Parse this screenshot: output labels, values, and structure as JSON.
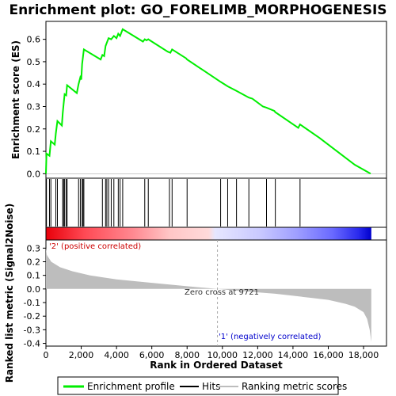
{
  "chart_data": {
    "type": "line",
    "title": "Enrichment plot: GO_FORELIMB_MORPHOGENESIS",
    "top_panel": {
      "ylabel": "Enrichment score (ES)",
      "ylim": [
        -0.02,
        0.68
      ],
      "yticks": [
        0.0,
        0.1,
        0.2,
        0.3,
        0.4,
        0.5,
        0.6
      ],
      "series": [
        {
          "name": "Enrichment profile",
          "color": "#00ee00",
          "points": [
            [
              0,
              0.0
            ],
            [
              30,
              0.09
            ],
            [
              200,
              0.08
            ],
            [
              280,
              0.145
            ],
            [
              500,
              0.13
            ],
            [
              560,
              0.18
            ],
            [
              650,
              0.235
            ],
            [
              900,
              0.215
            ],
            [
              950,
              0.27
            ],
            [
              1000,
              0.31
            ],
            [
              1060,
              0.355
            ],
            [
              1150,
              0.35
            ],
            [
              1200,
              0.395
            ],
            [
              1750,
              0.36
            ],
            [
              1850,
              0.4
            ],
            [
              1950,
              0.43
            ],
            [
              2000,
              0.42
            ],
            [
              2050,
              0.49
            ],
            [
              2150,
              0.555
            ],
            [
              3100,
              0.51
            ],
            [
              3200,
              0.53
            ],
            [
              3300,
              0.525
            ],
            [
              3380,
              0.57
            ],
            [
              3450,
              0.585
            ],
            [
              3550,
              0.605
            ],
            [
              3700,
              0.6
            ],
            [
              3850,
              0.615
            ],
            [
              4000,
              0.605
            ],
            [
              4100,
              0.625
            ],
            [
              4200,
              0.615
            ],
            [
              4350,
              0.645
            ],
            [
              5500,
              0.59
            ],
            [
              5600,
              0.6
            ],
            [
              5700,
              0.595
            ],
            [
              5800,
              0.6
            ],
            [
              6900,
              0.545
            ],
            [
              7050,
              0.54
            ],
            [
              7150,
              0.555
            ],
            [
              7950,
              0.515
            ],
            [
              8000,
              0.51
            ],
            [
              9900,
              0.41
            ],
            [
              10300,
              0.39
            ],
            [
              10800,
              0.37
            ],
            [
              11500,
              0.34
            ],
            [
              11700,
              0.335
            ],
            [
              12300,
              0.3
            ],
            [
              12500,
              0.295
            ],
            [
              12950,
              0.28
            ],
            [
              13000,
              0.275
            ],
            [
              14300,
              0.205
            ],
            [
              14400,
              0.22
            ],
            [
              15500,
              0.16
            ],
            [
              16500,
              0.1
            ],
            [
              17500,
              0.04
            ],
            [
              18400,
              0.0
            ]
          ]
        }
      ]
    },
    "hits": [
      30,
      200,
      280,
      560,
      650,
      950,
      1000,
      1060,
      1150,
      1200,
      1850,
      1950,
      2050,
      2100,
      2150,
      3200,
      3380,
      3450,
      3550,
      3700,
      3850,
      4100,
      4200,
      4350,
      5600,
      5800,
      7000,
      7150,
      8000,
      9900,
      10300,
      10800,
      11500,
      12500,
      13000,
      14400
    ],
    "bottom_panel": {
      "ylabel": "Ranked list metric (Signal2Noise)",
      "xlabel": "Rank in Ordered Dataset",
      "ylim": [
        -0.42,
        0.36
      ],
      "yticks": [
        -0.4,
        -0.3,
        -0.2,
        -0.1,
        0.0,
        0.1,
        0.2,
        0.3
      ],
      "xlim": [
        0,
        19300
      ],
      "xticks": [
        0,
        2000,
        4000,
        6000,
        8000,
        10000,
        12000,
        14000,
        16000,
        18000
      ],
      "fill_color": "#bdbdbd",
      "profile": [
        [
          0,
          0.3
        ],
        [
          50,
          0.25
        ],
        [
          300,
          0.2
        ],
        [
          800,
          0.16
        ],
        [
          1500,
          0.13
        ],
        [
          2500,
          0.1
        ],
        [
          4000,
          0.07
        ],
        [
          6000,
          0.045
        ],
        [
          8000,
          0.02
        ],
        [
          9721,
          0.0
        ],
        [
          11000,
          -0.015
        ],
        [
          12000,
          -0.025
        ],
        [
          13000,
          -0.035
        ],
        [
          14000,
          -0.05
        ],
        [
          15000,
          -0.065
        ],
        [
          16000,
          -0.08
        ],
        [
          17000,
          -0.11
        ],
        [
          17500,
          -0.13
        ],
        [
          18000,
          -0.17
        ],
        [
          18200,
          -0.22
        ],
        [
          18350,
          -0.3
        ],
        [
          18440,
          -0.39
        ]
      ],
      "zero_cross_rank": 9721,
      "annotations": {
        "positive": "'2' (positive correlated)",
        "zero_cross": "Zero cross at 9721",
        "negative": "'1' (negatively correlated)"
      }
    },
    "n_genes": 18440,
    "legend": {
      "placement": "bottom",
      "entries": [
        {
          "label": "Enrichment profile",
          "color": "#00ee00",
          "style": "line"
        },
        {
          "label": "Hits",
          "color": "#000000",
          "style": "line"
        },
        {
          "label": "Ranking metric scores",
          "color": "#bdbdbd",
          "style": "line"
        }
      ]
    },
    "colors": {
      "positive_annot": "#cc0000",
      "negative_annot": "#0000cc",
      "zero_annot": "#333333",
      "heat_red": "#ff0000",
      "heat_blue": "#0000ff"
    }
  }
}
